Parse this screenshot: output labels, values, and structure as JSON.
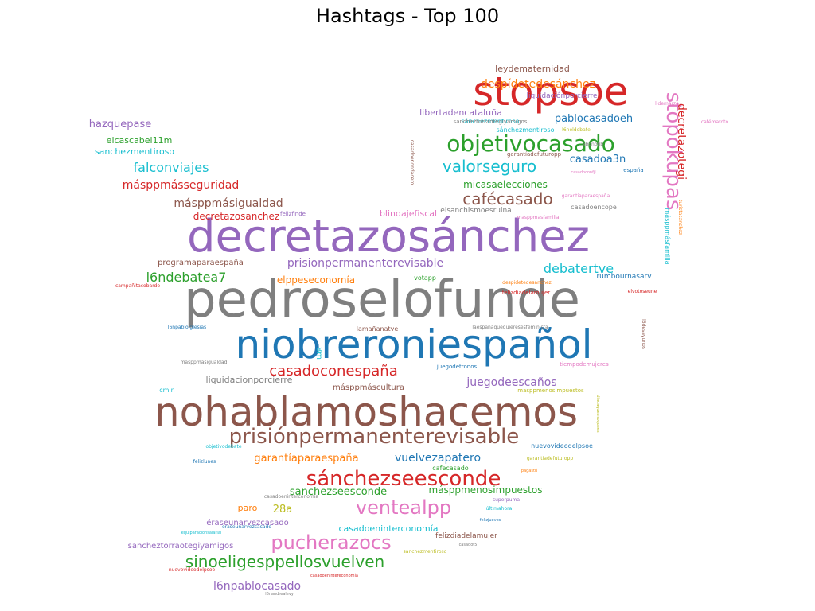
{
  "chart_data": {
    "type": "wordcloud",
    "title": "Hashtags - Top 100",
    "words": [
      {
        "text": "pedroselofunde",
        "weight": 100,
        "color": "#7f7f7f"
      },
      {
        "text": "decretazosánchez",
        "weight": 88,
        "color": "#9467bd"
      },
      {
        "text": "nohablamoshacemos",
        "weight": 80,
        "color": "#8c564b"
      },
      {
        "text": "niobreroniespañol",
        "weight": 80,
        "color": "#1f77b4"
      },
      {
        "text": "stopsoe",
        "weight": 74,
        "color": "#d62728"
      },
      {
        "text": "prisiónpermanenterevisable",
        "weight": 44,
        "color": "#8c564b"
      },
      {
        "text": "objetivocasado",
        "weight": 44,
        "color": "#2ca02c"
      },
      {
        "text": "sánchezseesconde",
        "weight": 40,
        "color": "#d62728"
      },
      {
        "text": "stopokupas",
        "weight": 40,
        "color": "#e377c2"
      },
      {
        "text": "ventealpp",
        "weight": 38,
        "color": "#e377c2"
      },
      {
        "text": "pucherazocs",
        "weight": 34,
        "color": "#e377c2"
      },
      {
        "text": "sinoeligesppellosvuelven",
        "weight": 30,
        "color": "#2ca02c"
      },
      {
        "text": "valorseguro",
        "weight": 28,
        "color": "#17becf"
      },
      {
        "text": "cafécasado",
        "weight": 28,
        "color": "#8c564b"
      },
      {
        "text": "casadoconespaña",
        "weight": 26,
        "color": "#d62728"
      },
      {
        "text": "decretazotegi",
        "weight": 20,
        "color": "#d62728"
      },
      {
        "text": "debatertve",
        "weight": 20,
        "color": "#17becf"
      },
      {
        "text": "falconviajes",
        "weight": 20,
        "color": "#17becf"
      },
      {
        "text": "l6ndebatea7",
        "weight": 20,
        "color": "#2ca02c"
      },
      {
        "text": "juegodeescaños",
        "weight": 20,
        "color": "#9467bd"
      },
      {
        "text": "prisionpermanenterevisable",
        "weight": 19,
        "color": "#9467bd"
      },
      {
        "text": "vuelvezapatero",
        "weight": 19,
        "color": "#1f77b4"
      },
      {
        "text": "másppmásseguridad",
        "weight": 18,
        "color": "#d62728"
      },
      {
        "text": "másppmásigualdad",
        "weight": 18,
        "color": "#8c564b"
      },
      {
        "text": "l6npablocasado",
        "weight": 18,
        "color": "#9467bd"
      },
      {
        "text": "despídetedesánchez",
        "weight": 17,
        "color": "#ff7f0e"
      },
      {
        "text": "garantíaparaespaña",
        "weight": 16,
        "color": "#ff7f0e"
      },
      {
        "text": "sanchezseesconde",
        "weight": 16,
        "color": "#2ca02c"
      },
      {
        "text": "28a",
        "weight": 16,
        "color": "#bcbd22"
      },
      {
        "text": "casadoa3n",
        "weight": 16,
        "color": "#1f77b4"
      },
      {
        "text": "pablocasadoeh",
        "weight": 16,
        "color": "#1f77b4"
      },
      {
        "text": "micasaelecciones",
        "weight": 15,
        "color": "#2ca02c"
      },
      {
        "text": "hazquepase",
        "weight": 15,
        "color": "#9467bd"
      },
      {
        "text": "elppeseconomía",
        "weight": 14,
        "color": "#ff7f0e"
      },
      {
        "text": "másppmenosimpuestos",
        "weight": 14,
        "color": "#2ca02c"
      },
      {
        "text": "decretazosanchez",
        "weight": 14,
        "color": "#d62728"
      },
      {
        "text": "casadoeninterconomía",
        "weight": 13,
        "color": "#17becf"
      },
      {
        "text": "blindajefiscal",
        "weight": 13,
        "color": "#e377c2"
      },
      {
        "text": "sanchezmentiroso",
        "weight": 13,
        "color": "#17becf"
      },
      {
        "text": "libertadencataluña",
        "weight": 13,
        "color": "#9467bd"
      },
      {
        "text": "elcascabel11m",
        "weight": 12,
        "color": "#2ca02c"
      },
      {
        "text": "paro",
        "weight": 12,
        "color": "#ff7f0e"
      },
      {
        "text": "éraseunarvezcasado",
        "weight": 12,
        "color": "#9467bd"
      },
      {
        "text": "sancheztorraotegiyamigos",
        "weight": 12,
        "color": "#9467bd"
      },
      {
        "text": "liquidacionporcierre",
        "weight": 12,
        "color": "#7f7f7f"
      },
      {
        "text": "másppmáscultura",
        "weight": 12,
        "color": "#8c564b"
      },
      {
        "text": "leydematernidad",
        "weight": 12,
        "color": "#8c564b"
      },
      {
        "text": "programaparaespaña",
        "weight": 12,
        "color": "#8c564b"
      },
      {
        "text": "elsanchismoesruina",
        "weight": 11,
        "color": "#7f7f7f"
      },
      {
        "text": "liquidaciónporcierre",
        "weight": 11,
        "color": "#9467bd"
      },
      {
        "text": "rumbournasarv",
        "weight": 10,
        "color": "#1f77b4"
      },
      {
        "text": "felizdiadelamujer",
        "weight": 10,
        "color": "#8c564b"
      },
      {
        "text": "casadoencope",
        "weight": 10,
        "color": "#7f7f7f"
      },
      {
        "text": "sánchezmentiroso",
        "weight": 10,
        "color": "#17becf"
      },
      {
        "text": "8m",
        "weight": 11,
        "color": "#17becf"
      },
      {
        "text": "lamañanatve",
        "weight": 10,
        "color": "#8c564b"
      },
      {
        "text": "másppmásfamilia",
        "weight": 9,
        "color": "#17becf"
      },
      {
        "text": "sánchezmentiroso",
        "weight": 9,
        "color": "#17becf"
      },
      {
        "text": "cmin",
        "weight": 9,
        "color": "#17becf"
      },
      {
        "text": "sancheztorraotegiyamigos",
        "weight": 8,
        "color": "#7f7f7f"
      },
      {
        "text": "votapp",
        "weight": 8,
        "color": "#2ca02c"
      },
      {
        "text": "nuevovideodelpsoe",
        "weight": 8,
        "color": "#1f77b4"
      },
      {
        "text": "cafecasado",
        "weight": 8,
        "color": "#2ca02c"
      },
      {
        "text": "garantíadefuturopp",
        "weight": 8,
        "color": "#8c564b"
      },
      {
        "text": "juegodetronos",
        "weight": 8,
        "color": "#1f77b4"
      },
      {
        "text": "tiempodemujeres",
        "weight": 8,
        "color": "#e377c2"
      },
      {
        "text": "masppmenosimpuestos",
        "weight": 8,
        "color": "#bcbd22"
      },
      {
        "text": "felizdiadelamujer",
        "weight": 7,
        "color": "#d62728"
      },
      {
        "text": "felizfinde",
        "weight": 7,
        "color": "#9467bd"
      },
      {
        "text": "masppmasfamilia",
        "weight": 7,
        "color": "#e377c2"
      },
      {
        "text": "garantiaparaespaña",
        "weight": 7,
        "color": "#e377c2"
      },
      {
        "text": "despidetedesanchez",
        "weight": 7,
        "color": "#ff7f0e"
      },
      {
        "text": "campañitacobarde",
        "weight": 7,
        "color": "#d62728"
      },
      {
        "text": "l6npabloiglesias",
        "weight": 7,
        "color": "#1f77b4"
      },
      {
        "text": "laespanaquequieresesfeminista",
        "weight": 7,
        "color": "#7f7f7f"
      },
      {
        "text": "elvotoseune",
        "weight": 7,
        "color": "#d62728"
      },
      {
        "text": "masppmasigualdad",
        "weight": 7,
        "color": "#7f7f7f"
      },
      {
        "text": "casadoenondacero",
        "weight": 7,
        "color": "#8c564b"
      },
      {
        "text": "l6neldebate",
        "weight": 7,
        "color": "#bcbd22"
      },
      {
        "text": "abonofib",
        "weight": 6,
        "color": "#7f7f7f"
      },
      {
        "text": "casadoconfjl",
        "weight": 6,
        "color": "#e377c2"
      },
      {
        "text": "españa",
        "weight": 8,
        "color": "#1f77b4"
      },
      {
        "text": "turistasanchez",
        "weight": 6,
        "color": "#ff7f0e"
      },
      {
        "text": "lldemarzo",
        "weight": 6,
        "color": "#e377c2"
      },
      {
        "text": "cafémaroto",
        "weight": 6,
        "color": "#e377c2"
      },
      {
        "text": "l6desayunos",
        "weight": 6,
        "color": "#8c564b"
      },
      {
        "text": "objetivodebate",
        "weight": 6,
        "color": "#17becf"
      },
      {
        "text": "felizlunes",
        "weight": 7,
        "color": "#1f77b4"
      },
      {
        "text": "garantiadefuturopp",
        "weight": 7,
        "color": "#bcbd22"
      },
      {
        "text": "pagastú",
        "weight": 6,
        "color": "#ff7f0e"
      },
      {
        "text": "superpuma",
        "weight": 7,
        "color": "#9467bd"
      },
      {
        "text": "casadoeninterconomia",
        "weight": 7,
        "color": "#7f7f7f"
      },
      {
        "text": "últimahora",
        "weight": 7,
        "color": "#17becf"
      },
      {
        "text": "eraseunarvezcasado",
        "weight": 7,
        "color": "#1f77b4"
      },
      {
        "text": "equiparacionsalarial",
        "weight": 6,
        "color": "#17becf"
      },
      {
        "text": "felizjueves",
        "weight": 6,
        "color": "#1f77b4"
      },
      {
        "text": "casadot5",
        "weight": 6,
        "color": "#7f7f7f"
      },
      {
        "text": "sanchezmentiroso",
        "weight": 6,
        "color": "#bcbd22"
      },
      {
        "text": "nuevovideodelpsoe",
        "weight": 7,
        "color": "#d62728"
      },
      {
        "text": "casadoenintereconomía",
        "weight": 6,
        "color": "#d62728"
      },
      {
        "text": "l6nandrealevy",
        "weight": 6,
        "color": "#7f7f7f"
      },
      {
        "text": "diadaquesnoquees",
        "weight": 5,
        "color": "#bcbd22"
      }
    ]
  }
}
